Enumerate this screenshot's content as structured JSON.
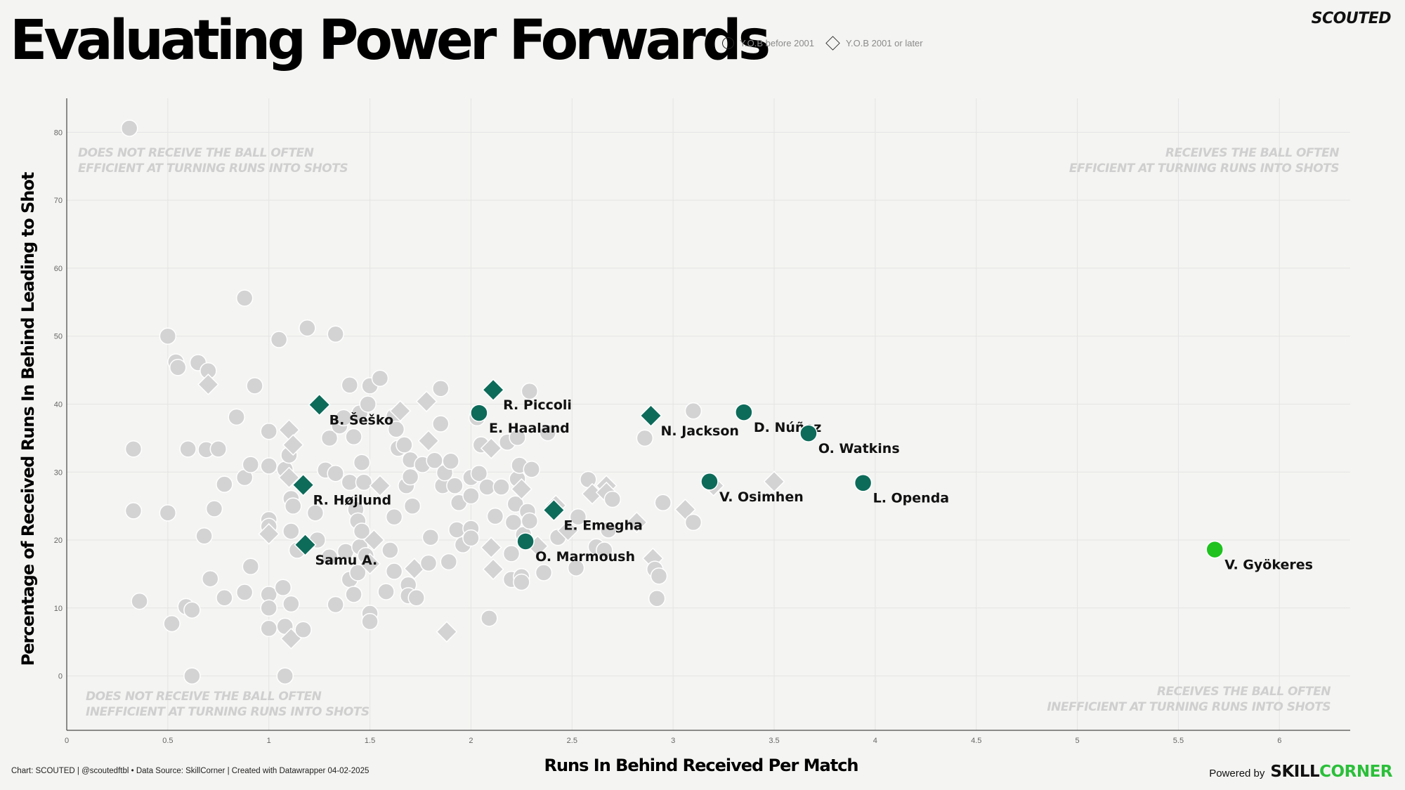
{
  "header": {
    "title": "Evaluating Power Forwards",
    "legend_circle": "Y.O.B before 2001",
    "legend_diamond": "Y.O.B 2001 or later",
    "brand": "SCOUTED"
  },
  "footer": {
    "note": "Chart: SCOUTED | @scoutedftbl • Data Source: SkillCorner | Created with Datawrapper 04-02-2025",
    "powered_by": "Powered by",
    "powered_brand_a": "SKILL",
    "powered_brand_b": "CORNER"
  },
  "colors": {
    "background": "#f4f4f2",
    "grey_marker": "#d3d3d3",
    "highlight": "#0d6b5a",
    "top": "#1fc21f",
    "quad_text": "#cfcfcf"
  },
  "chart_data": {
    "type": "scatter",
    "xlabel": "Runs In Behind Received Per Match",
    "ylabel": "Percentage of Received Runs In Behind Leading to Shot",
    "xlim": [
      0,
      6.35
    ],
    "ylim": [
      -8,
      85
    ],
    "xticks": [
      0,
      0.5,
      1,
      1.5,
      2,
      2.5,
      3,
      3.5,
      4,
      4.5,
      5,
      5.5,
      6
    ],
    "yticks": [
      0,
      10,
      20,
      30,
      40,
      50,
      60,
      70,
      80
    ],
    "grid": true,
    "quadrants": {
      "top_left": [
        "DOES NOT RECEIVE THE BALL OFTEN",
        "EFFICIENT AT TURNING RUNS INTO SHOTS"
      ],
      "top_right": [
        "RECEIVES THE BALL OFTEN",
        "EFFICIENT AT TURNING RUNS INTO SHOTS"
      ],
      "bottom_left": [
        "DOES NOT RECEIVE THE BALL OFTEN",
        "INEFFICIENT AT TURNING RUNS INTO SHOTS"
      ],
      "bottom_right": [
        "RECEIVES THE BALL OFTEN",
        "INEFFICIENT AT TURNING RUNS INTO SHOTS"
      ]
    },
    "highlighted": [
      {
        "label": "V. Gyökeres",
        "x": 5.68,
        "y": 18.6,
        "shape": "circle",
        "top": true
      },
      {
        "label": "D. Núñez",
        "x": 3.35,
        "y": 38.8,
        "shape": "circle"
      },
      {
        "label": "O. Watkins",
        "x": 3.67,
        "y": 35.7,
        "shape": "circle"
      },
      {
        "label": "L. Openda",
        "x": 3.94,
        "y": 28.4,
        "shape": "circle"
      },
      {
        "label": "V. Osimhen",
        "x": 3.18,
        "y": 28.6,
        "shape": "circle"
      },
      {
        "label": "N. Jackson",
        "x": 2.89,
        "y": 38.3,
        "shape": "diamond"
      },
      {
        "label": "R. Piccoli",
        "x": 2.11,
        "y": 42.1,
        "shape": "diamond"
      },
      {
        "label": "E. Haaland",
        "x": 2.04,
        "y": 38.7,
        "shape": "circle"
      },
      {
        "label": "B. Šeško",
        "x": 1.25,
        "y": 39.9,
        "shape": "diamond"
      },
      {
        "label": "R. Højlund",
        "x": 1.17,
        "y": 28.1,
        "shape": "diamond"
      },
      {
        "label": "Samu A.",
        "x": 1.18,
        "y": 19.3,
        "shape": "diamond"
      },
      {
        "label": "E. Emegha",
        "x": 2.41,
        "y": 24.4,
        "shape": "diamond"
      },
      {
        "label": "O. Marmoush",
        "x": 2.27,
        "y": 19.8,
        "shape": "circle"
      }
    ],
    "others": [
      {
        "x": 0.31,
        "y": 80.6,
        "s": "c"
      },
      {
        "x": 0.33,
        "y": 33.4,
        "s": "c"
      },
      {
        "x": 0.33,
        "y": 24.3,
        "s": "c"
      },
      {
        "x": 0.36,
        "y": 11.0,
        "s": "c"
      },
      {
        "x": 0.5,
        "y": 50.0,
        "s": "c"
      },
      {
        "x": 0.5,
        "y": 24.0,
        "s": "c"
      },
      {
        "x": 0.52,
        "y": 7.7,
        "s": "c"
      },
      {
        "x": 0.54,
        "y": 46.2,
        "s": "c"
      },
      {
        "x": 0.55,
        "y": 45.4,
        "s": "c"
      },
      {
        "x": 0.59,
        "y": 10.2,
        "s": "c"
      },
      {
        "x": 0.6,
        "y": 33.4,
        "s": "c"
      },
      {
        "x": 0.62,
        "y": 9.7,
        "s": "c"
      },
      {
        "x": 0.62,
        "y": 0.0,
        "s": "c"
      },
      {
        "x": 0.65,
        "y": 46.1,
        "s": "c"
      },
      {
        "x": 0.68,
        "y": 20.6,
        "s": "c"
      },
      {
        "x": 0.69,
        "y": 33.3,
        "s": "c"
      },
      {
        "x": 0.7,
        "y": 44.9,
        "s": "c"
      },
      {
        "x": 0.7,
        "y": 42.9,
        "s": "d"
      },
      {
        "x": 0.71,
        "y": 14.3,
        "s": "c"
      },
      {
        "x": 0.73,
        "y": 24.6,
        "s": "c"
      },
      {
        "x": 0.75,
        "y": 33.4,
        "s": "c"
      },
      {
        "x": 0.78,
        "y": 28.2,
        "s": "c"
      },
      {
        "x": 0.78,
        "y": 11.5,
        "s": "c"
      },
      {
        "x": 0.84,
        "y": 38.1,
        "s": "c"
      },
      {
        "x": 0.88,
        "y": 55.6,
        "s": "c"
      },
      {
        "x": 0.88,
        "y": 29.2,
        "s": "c"
      },
      {
        "x": 0.88,
        "y": 12.3,
        "s": "c"
      },
      {
        "x": 0.91,
        "y": 31.1,
        "s": "c"
      },
      {
        "x": 0.91,
        "y": 16.1,
        "s": "c"
      },
      {
        "x": 0.93,
        "y": 42.7,
        "s": "c"
      },
      {
        "x": 1.0,
        "y": 36.0,
        "s": "c"
      },
      {
        "x": 1.0,
        "y": 30.9,
        "s": "c"
      },
      {
        "x": 1.0,
        "y": 23.0,
        "s": "c"
      },
      {
        "x": 1.0,
        "y": 22.0,
        "s": "c"
      },
      {
        "x": 1.0,
        "y": 20.9,
        "s": "d"
      },
      {
        "x": 1.0,
        "y": 12.0,
        "s": "c"
      },
      {
        "x": 1.0,
        "y": 10.0,
        "s": "c"
      },
      {
        "x": 1.0,
        "y": 7.0,
        "s": "c"
      },
      {
        "x": 1.05,
        "y": 49.5,
        "s": "c"
      },
      {
        "x": 1.07,
        "y": 13.0,
        "s": "c"
      },
      {
        "x": 1.08,
        "y": 30.4,
        "s": "c"
      },
      {
        "x": 1.08,
        "y": 7.3,
        "s": "c"
      },
      {
        "x": 1.08,
        "y": 0.0,
        "s": "c"
      },
      {
        "x": 1.1,
        "y": 36.2,
        "s": "d"
      },
      {
        "x": 1.1,
        "y": 32.5,
        "s": "c"
      },
      {
        "x": 1.1,
        "y": 29.2,
        "s": "d"
      },
      {
        "x": 1.11,
        "y": 26.1,
        "s": "c"
      },
      {
        "x": 1.11,
        "y": 21.3,
        "s": "c"
      },
      {
        "x": 1.11,
        "y": 10.6,
        "s": "c"
      },
      {
        "x": 1.11,
        "y": 5.5,
        "s": "d"
      },
      {
        "x": 1.12,
        "y": 34.0,
        "s": "d"
      },
      {
        "x": 1.12,
        "y": 25.0,
        "s": "c"
      },
      {
        "x": 1.14,
        "y": 18.5,
        "s": "c"
      },
      {
        "x": 1.17,
        "y": 6.8,
        "s": "c"
      },
      {
        "x": 1.19,
        "y": 51.2,
        "s": "c"
      },
      {
        "x": 1.23,
        "y": 24.0,
        "s": "c"
      },
      {
        "x": 1.24,
        "y": 20.0,
        "s": "c"
      },
      {
        "x": 1.28,
        "y": 30.3,
        "s": "c"
      },
      {
        "x": 1.3,
        "y": 35.0,
        "s": "c"
      },
      {
        "x": 1.3,
        "y": 17.5,
        "s": "c"
      },
      {
        "x": 1.33,
        "y": 50.3,
        "s": "c"
      },
      {
        "x": 1.33,
        "y": 29.8,
        "s": "c"
      },
      {
        "x": 1.33,
        "y": 10.5,
        "s": "c"
      },
      {
        "x": 1.35,
        "y": 36.8,
        "s": "c"
      },
      {
        "x": 1.37,
        "y": 38.0,
        "s": "c"
      },
      {
        "x": 1.38,
        "y": 18.3,
        "s": "c"
      },
      {
        "x": 1.4,
        "y": 42.8,
        "s": "c"
      },
      {
        "x": 1.4,
        "y": 28.5,
        "s": "c"
      },
      {
        "x": 1.4,
        "y": 14.2,
        "s": "c"
      },
      {
        "x": 1.42,
        "y": 35.2,
        "s": "c"
      },
      {
        "x": 1.42,
        "y": 12.0,
        "s": "c"
      },
      {
        "x": 1.43,
        "y": 24.5,
        "s": "c"
      },
      {
        "x": 1.44,
        "y": 22.8,
        "s": "c"
      },
      {
        "x": 1.44,
        "y": 15.2,
        "s": "c"
      },
      {
        "x": 1.45,
        "y": 38.7,
        "s": "c"
      },
      {
        "x": 1.45,
        "y": 19.0,
        "s": "c"
      },
      {
        "x": 1.46,
        "y": 31.4,
        "s": "c"
      },
      {
        "x": 1.46,
        "y": 21.3,
        "s": "c"
      },
      {
        "x": 1.47,
        "y": 28.5,
        "s": "c"
      },
      {
        "x": 1.48,
        "y": 17.7,
        "s": "c"
      },
      {
        "x": 1.49,
        "y": 40.0,
        "s": "c"
      },
      {
        "x": 1.5,
        "y": 42.7,
        "s": "c"
      },
      {
        "x": 1.5,
        "y": 16.5,
        "s": "d"
      },
      {
        "x": 1.5,
        "y": 9.2,
        "s": "c"
      },
      {
        "x": 1.5,
        "y": 8.0,
        "s": "c"
      },
      {
        "x": 1.52,
        "y": 20.0,
        "s": "d"
      },
      {
        "x": 1.55,
        "y": 43.8,
        "s": "c"
      },
      {
        "x": 1.55,
        "y": 28.0,
        "s": "d"
      },
      {
        "x": 1.58,
        "y": 12.4,
        "s": "c"
      },
      {
        "x": 1.6,
        "y": 18.5,
        "s": "c"
      },
      {
        "x": 1.62,
        "y": 38.2,
        "s": "c"
      },
      {
        "x": 1.62,
        "y": 23.4,
        "s": "c"
      },
      {
        "x": 1.62,
        "y": 15.4,
        "s": "c"
      },
      {
        "x": 1.63,
        "y": 36.3,
        "s": "c"
      },
      {
        "x": 1.64,
        "y": 33.5,
        "s": "c"
      },
      {
        "x": 1.65,
        "y": 39.0,
        "s": "d"
      },
      {
        "x": 1.67,
        "y": 34.0,
        "s": "c"
      },
      {
        "x": 1.68,
        "y": 28.0,
        "s": "c"
      },
      {
        "x": 1.69,
        "y": 13.4,
        "s": "c"
      },
      {
        "x": 1.69,
        "y": 11.8,
        "s": "c"
      },
      {
        "x": 1.7,
        "y": 31.8,
        "s": "c"
      },
      {
        "x": 1.7,
        "y": 29.3,
        "s": "c"
      },
      {
        "x": 1.71,
        "y": 25.0,
        "s": "c"
      },
      {
        "x": 1.72,
        "y": 15.8,
        "s": "d"
      },
      {
        "x": 1.73,
        "y": 11.5,
        "s": "c"
      },
      {
        "x": 1.76,
        "y": 31.1,
        "s": "c"
      },
      {
        "x": 1.78,
        "y": 40.4,
        "s": "d"
      },
      {
        "x": 1.79,
        "y": 34.6,
        "s": "d"
      },
      {
        "x": 1.79,
        "y": 16.6,
        "s": "c"
      },
      {
        "x": 1.8,
        "y": 20.4,
        "s": "c"
      },
      {
        "x": 1.82,
        "y": 31.7,
        "s": "c"
      },
      {
        "x": 1.85,
        "y": 42.3,
        "s": "c"
      },
      {
        "x": 1.85,
        "y": 37.1,
        "s": "c"
      },
      {
        "x": 1.86,
        "y": 28.0,
        "s": "c"
      },
      {
        "x": 1.87,
        "y": 29.9,
        "s": "c"
      },
      {
        "x": 1.88,
        "y": 6.5,
        "s": "d"
      },
      {
        "x": 1.89,
        "y": 16.8,
        "s": "c"
      },
      {
        "x": 1.9,
        "y": 31.6,
        "s": "c"
      },
      {
        "x": 1.92,
        "y": 28.0,
        "s": "c"
      },
      {
        "x": 1.93,
        "y": 21.5,
        "s": "c"
      },
      {
        "x": 1.94,
        "y": 25.5,
        "s": "c"
      },
      {
        "x": 1.96,
        "y": 19.3,
        "s": "c"
      },
      {
        "x": 2.0,
        "y": 29.2,
        "s": "c"
      },
      {
        "x": 2.0,
        "y": 26.5,
        "s": "c"
      },
      {
        "x": 2.0,
        "y": 21.7,
        "s": "c"
      },
      {
        "x": 2.0,
        "y": 20.3,
        "s": "c"
      },
      {
        "x": 2.03,
        "y": 38.0,
        "s": "c"
      },
      {
        "x": 2.04,
        "y": 29.8,
        "s": "c"
      },
      {
        "x": 2.05,
        "y": 34.0,
        "s": "c"
      },
      {
        "x": 2.08,
        "y": 27.8,
        "s": "c"
      },
      {
        "x": 2.09,
        "y": 8.5,
        "s": "c"
      },
      {
        "x": 2.1,
        "y": 33.5,
        "s": "d"
      },
      {
        "x": 2.1,
        "y": 18.9,
        "s": "d"
      },
      {
        "x": 2.11,
        "y": 15.7,
        "s": "d"
      },
      {
        "x": 2.12,
        "y": 23.5,
        "s": "c"
      },
      {
        "x": 2.15,
        "y": 27.8,
        "s": "c"
      },
      {
        "x": 2.18,
        "y": 34.4,
        "s": "c"
      },
      {
        "x": 2.2,
        "y": 14.2,
        "s": "c"
      },
      {
        "x": 2.2,
        "y": 18.0,
        "s": "c"
      },
      {
        "x": 2.21,
        "y": 22.6,
        "s": "c"
      },
      {
        "x": 2.22,
        "y": 25.3,
        "s": "c"
      },
      {
        "x": 2.23,
        "y": 29.0,
        "s": "c"
      },
      {
        "x": 2.23,
        "y": 35.1,
        "s": "c"
      },
      {
        "x": 2.24,
        "y": 31.0,
        "s": "c"
      },
      {
        "x": 2.25,
        "y": 27.5,
        "s": "d"
      },
      {
        "x": 2.25,
        "y": 14.6,
        "s": "c"
      },
      {
        "x": 2.25,
        "y": 13.8,
        "s": "c"
      },
      {
        "x": 2.26,
        "y": 20.8,
        "s": "c"
      },
      {
        "x": 2.28,
        "y": 24.2,
        "s": "c"
      },
      {
        "x": 2.29,
        "y": 41.9,
        "s": "c"
      },
      {
        "x": 2.29,
        "y": 22.8,
        "s": "c"
      },
      {
        "x": 2.3,
        "y": 30.4,
        "s": "c"
      },
      {
        "x": 2.33,
        "y": 19.1,
        "s": "d"
      },
      {
        "x": 2.36,
        "y": 15.2,
        "s": "c"
      },
      {
        "x": 2.38,
        "y": 35.8,
        "s": "c"
      },
      {
        "x": 2.42,
        "y": 25.1,
        "s": "d"
      },
      {
        "x": 2.43,
        "y": 20.4,
        "s": "c"
      },
      {
        "x": 2.48,
        "y": 21.4,
        "s": "d"
      },
      {
        "x": 2.52,
        "y": 15.9,
        "s": "c"
      },
      {
        "x": 2.53,
        "y": 23.4,
        "s": "c"
      },
      {
        "x": 2.58,
        "y": 28.9,
        "s": "c"
      },
      {
        "x": 2.6,
        "y": 26.8,
        "s": "d"
      },
      {
        "x": 2.62,
        "y": 19.0,
        "s": "c"
      },
      {
        "x": 2.66,
        "y": 18.5,
        "s": "c"
      },
      {
        "x": 2.67,
        "y": 28.0,
        "s": "d"
      },
      {
        "x": 2.67,
        "y": 27.0,
        "s": "d"
      },
      {
        "x": 2.68,
        "y": 21.5,
        "s": "c"
      },
      {
        "x": 2.7,
        "y": 26.0,
        "s": "c"
      },
      {
        "x": 2.82,
        "y": 22.6,
        "s": "d"
      },
      {
        "x": 2.86,
        "y": 35.0,
        "s": "c"
      },
      {
        "x": 2.9,
        "y": 17.3,
        "s": "d"
      },
      {
        "x": 2.91,
        "y": 15.7,
        "s": "c"
      },
      {
        "x": 2.92,
        "y": 11.4,
        "s": "c"
      },
      {
        "x": 2.93,
        "y": 14.7,
        "s": "c"
      },
      {
        "x": 2.95,
        "y": 25.5,
        "s": "c"
      },
      {
        "x": 3.06,
        "y": 24.5,
        "s": "d"
      },
      {
        "x": 3.1,
        "y": 39.0,
        "s": "c"
      },
      {
        "x": 3.1,
        "y": 22.6,
        "s": "c"
      },
      {
        "x": 3.2,
        "y": 28.0,
        "s": "d"
      },
      {
        "x": 3.5,
        "y": 28.6,
        "s": "d"
      }
    ]
  }
}
